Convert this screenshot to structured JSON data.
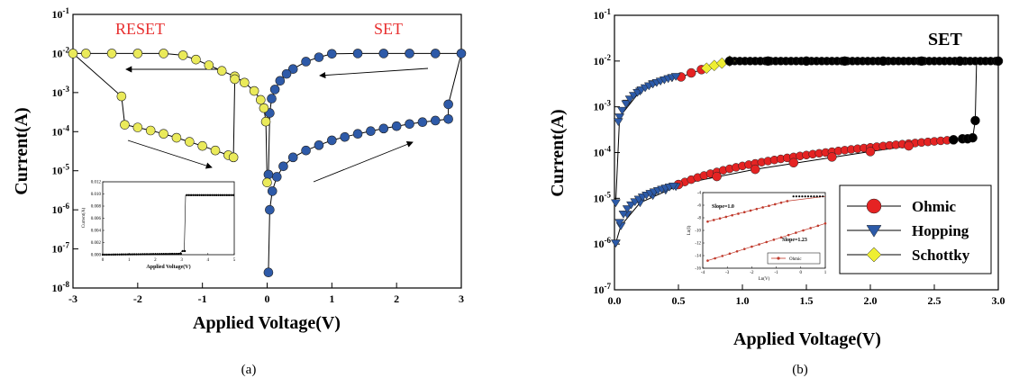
{
  "chart_data": [
    {
      "type": "scatter",
      "panel_label": "(a)",
      "xlabel": "Applied Voltage(V)",
      "ylabel": "Current(A)",
      "xlim": [
        -3,
        3
      ],
      "ylim_exponent": [
        -8,
        -1
      ],
      "y_scale": "log",
      "x_ticks": [
        "-3",
        "-2",
        "-1",
        "0",
        "1",
        "2",
        "3"
      ],
      "y_ticks": [
        "10-8",
        "10-7",
        "10-6",
        "10-5",
        "10-4",
        "10-3",
        "10-2",
        "10-1"
      ],
      "annotations": [
        "RESET",
        "SET"
      ],
      "colors": {
        "set_markers": "#2e5aa8",
        "reset_markers": "#eaea5a",
        "annotation": "#e83030"
      },
      "series": [
        {
          "marker_color": "#2e5aa8",
          "points": [
            [
              0.02,
              2.5e-08
            ],
            [
              0.04,
              1e-06
            ],
            [
              0.08,
              3e-06
            ],
            [
              0.15,
              7e-06
            ],
            [
              0.25,
              1.3e-05
            ],
            [
              0.4,
              2.2e-05
            ],
            [
              0.6,
              3.3e-05
            ],
            [
              0.8,
              4.5e-05
            ],
            [
              1.0,
              6e-05
            ],
            [
              1.2,
              7.3e-05
            ],
            [
              1.4,
              8.8e-05
            ],
            [
              1.6,
              0.000103
            ],
            [
              1.8,
              0.00012
            ],
            [
              2.0,
              0.000138
            ],
            [
              2.2,
              0.000157
            ],
            [
              2.4,
              0.000175
            ],
            [
              2.6,
              0.000192
            ],
            [
              2.8,
              0.00021
            ],
            [
              2.8,
              0.0005
            ],
            [
              3.0,
              0.01
            ],
            [
              2.6,
              0.01
            ],
            [
              2.2,
              0.01
            ],
            [
              1.8,
              0.01
            ],
            [
              1.4,
              0.01
            ],
            [
              1.0,
              0.0098
            ],
            [
              0.8,
              0.008
            ],
            [
              0.6,
              0.0062
            ],
            [
              0.4,
              0.004
            ],
            [
              0.3,
              0.003
            ],
            [
              0.2,
              0.002
            ],
            [
              0.12,
              0.0012
            ],
            [
              0.07,
              0.0007
            ],
            [
              0.04,
              0.0003
            ],
            [
              0.02,
              8e-06
            ]
          ]
        },
        {
          "marker_color": "#eaea5a",
          "points": [
            [
              0.0,
              5e-06
            ],
            [
              -0.02,
              0.00018
            ],
            [
              -0.05,
              0.0004
            ],
            [
              -0.1,
              0.00065
            ],
            [
              -0.2,
              0.0011
            ],
            [
              -0.35,
              0.0018
            ],
            [
              -0.5,
              0.0026
            ],
            [
              -0.7,
              0.0036
            ],
            [
              -0.9,
              0.005
            ],
            [
              -1.1,
              0.007
            ],
            [
              -1.3,
              0.009
            ],
            [
              -1.6,
              0.01
            ],
            [
              -2.0,
              0.01
            ],
            [
              -2.4,
              0.01
            ],
            [
              -2.8,
              0.01
            ],
            [
              -3.0,
              0.01
            ],
            [
              -2.25,
              0.0008
            ],
            [
              -2.2,
              0.00015
            ],
            [
              -2.0,
              0.000128
            ],
            [
              -1.8,
              0.000107
            ],
            [
              -1.6,
              8.8e-05
            ],
            [
              -1.4,
              7e-05
            ],
            [
              -1.2,
              5.5e-05
            ],
            [
              -1.0,
              4.3e-05
            ],
            [
              -0.8,
              3.3e-05
            ],
            [
              -0.6,
              2.5e-05
            ],
            [
              -0.52,
              2.2e-05
            ],
            [
              -0.5,
              0.0022
            ]
          ]
        }
      ],
      "inset": {
        "xlabel": "Applied Voltage(V)",
        "ylabel": "Current(A)",
        "x_ticks": [
          "0",
          "1",
          "2",
          "3",
          "4",
          "5"
        ],
        "y_ticks": [
          "0.000",
          "0.002",
          "0.004",
          "0.006",
          "0.008",
          "0.010",
          "0.012"
        ],
        "xlim": [
          0,
          5
        ],
        "ylim": [
          0,
          0.012
        ],
        "points": [
          [
            0,
            0
          ],
          [
            0.5,
            0
          ],
          [
            1,
            0
          ],
          [
            1.5,
            2e-05
          ],
          [
            2,
            5e-05
          ],
          [
            2.5,
            0.0001
          ],
          [
            2.9,
            0.00015
          ],
          [
            3.0,
            0.0005
          ],
          [
            3.1,
            0.0006
          ],
          [
            3.15,
            0.0098
          ],
          [
            3.5,
            0.0098
          ],
          [
            4,
            0.0098
          ],
          [
            4.5,
            0.0098
          ],
          [
            5,
            0.0098
          ]
        ]
      }
    },
    {
      "type": "scatter",
      "panel_label": "(b)",
      "xlabel": "Applied Voltage(V)",
      "ylabel": "Current(A)",
      "xlim": [
        0,
        3
      ],
      "ylim_exponent": [
        -7,
        -1
      ],
      "y_scale": "log",
      "x_ticks": [
        "0.0",
        "0.5",
        "1.0",
        "1.5",
        "2.0",
        "2.5",
        "3.0"
      ],
      "y_ticks": [
        "10-7",
        "10-6",
        "10-5",
        "10-4",
        "10-3",
        "10-2",
        "10-1"
      ],
      "annotations": [
        "SET"
      ],
      "legend_placement": "right",
      "series": [
        {
          "name": "Ohmic",
          "marker": "circle",
          "color": "#e52323",
          "points": [
            [
              0.5,
              2e-05
            ],
            [
              0.8,
              3e-05
            ],
            [
              1.1,
              4.3e-05
            ],
            [
              1.4,
              6e-05
            ],
            [
              1.7,
              8e-05
            ],
            [
              2.0,
              0.000105
            ],
            [
              2.3,
              0.00014
            ],
            [
              2.65,
              0.00019
            ],
            [
              0.52,
              0.0045
            ],
            [
              0.6,
              0.0055
            ],
            [
              0.68,
              0.0065
            ]
          ]
        },
        {
          "name": "Hopping",
          "marker": "triangle-down",
          "color": "#2c5aa8",
          "points": [
            [
              0.01,
              1.05e-06
            ],
            [
              0.05,
              2.5e-06
            ],
            [
              0.1,
              4.5e-06
            ],
            [
              0.2,
              8e-06
            ],
            [
              0.3,
              1.15e-05
            ],
            [
              0.4,
              1.5e-05
            ],
            [
              0.48,
              1.8e-05
            ],
            [
              0.01,
              8e-06
            ],
            [
              0.04,
              0.0006
            ],
            [
              0.1,
              0.0012
            ],
            [
              0.2,
              0.0022
            ],
            [
              0.3,
              0.0032
            ],
            [
              0.45,
              0.0043
            ]
          ]
        },
        {
          "name": "Schottky",
          "marker": "diamond",
          "color": "#eeee33",
          "points": [
            [
              0.72,
              0.007
            ],
            [
              0.78,
              0.008
            ],
            [
              0.84,
              0.009
            ],
            [
              0.9,
              0.01
            ]
          ]
        },
        {
          "name": "",
          "marker": "circle",
          "color": "#000000",
          "points": [
            [
              0.9,
              0.01
            ],
            [
              1.2,
              0.01
            ],
            [
              1.5,
              0.01
            ],
            [
              1.8,
              0.01
            ],
            [
              2.1,
              0.01
            ],
            [
              2.4,
              0.01
            ],
            [
              2.7,
              0.01
            ],
            [
              3.0,
              0.01
            ],
            [
              2.72,
              0.0002
            ],
            [
              2.76,
              0.0002
            ],
            [
              2.8,
              0.00021
            ],
            [
              2.82,
              0.0005
            ],
            [
              2.65,
              0.00019
            ]
          ]
        }
      ],
      "inset": {
        "xlabel": "Ln(V)",
        "ylabel": "Ln(I)",
        "x_ticks": [
          "-4",
          "-3",
          "-2",
          "-1",
          "0",
          "1"
        ],
        "y_ticks": [
          "-16",
          "-14",
          "-12",
          "-10",
          "-8",
          "-6",
          "-4"
        ],
        "annotations": [
          "Slope=1.0",
          "Slope=1.23"
        ],
        "legend": "Ohmic",
        "xlim": [
          -4,
          1
        ],
        "ylim": [
          -16,
          -4
        ]
      }
    }
  ]
}
